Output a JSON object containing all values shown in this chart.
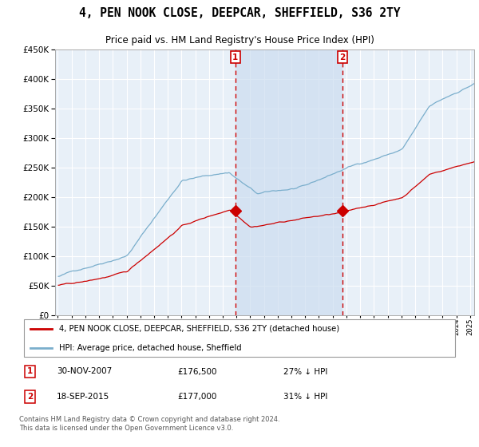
{
  "title": "4, PEN NOOK CLOSE, DEEPCAR, SHEFFIELD, S36 2TY",
  "subtitle": "Price paid vs. HM Land Registry's House Price Index (HPI)",
  "legend_red": "4, PEN NOOK CLOSE, DEEPCAR, SHEFFIELD, S36 2TY (detached house)",
  "legend_blue": "HPI: Average price, detached house, Sheffield",
  "transaction1_date": "30-NOV-2007",
  "transaction1_price": "£176,500",
  "transaction1_hpi": "27% ↓ HPI",
  "transaction2_date": "18-SEP-2015",
  "transaction2_price": "£177,000",
  "transaction2_hpi": "31% ↓ HPI",
  "footer": "Contains HM Land Registry data © Crown copyright and database right 2024.\nThis data is licensed under the Open Government Licence v3.0.",
  "transaction1_x": 2007.917,
  "transaction2_x": 2015.708,
  "transaction1_y": 176500,
  "transaction2_y": 177000,
  "ylim": [
    0,
    450000
  ],
  "xlim_left": 1994.8,
  "xlim_right": 2025.3,
  "background_color": "#ffffff",
  "plot_bg_color": "#e8f0f8",
  "grid_color": "#ffffff",
  "red_line_color": "#cc0000",
  "blue_line_color": "#7aaecc",
  "vspan_color": "#ccddf0"
}
